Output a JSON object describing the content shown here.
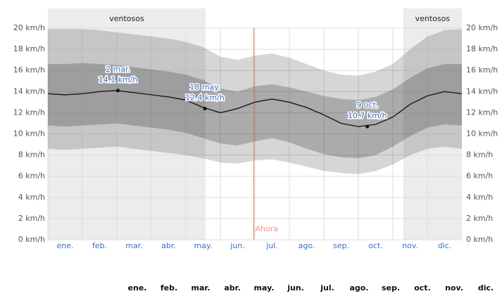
{
  "chart_data": {
    "type": "band-line",
    "categories": [
      "ene.",
      "feb.",
      "mar.",
      "abr.",
      "may.",
      "jun.",
      "jul.",
      "ago.",
      "sep.",
      "oct.",
      "nov.",
      "dic."
    ],
    "x": [
      0,
      0.5,
      1,
      1.5,
      2,
      2.5,
      3,
      3.5,
      4,
      4.5,
      5,
      5.5,
      6,
      6.5,
      7,
      7.5,
      8,
      8.5,
      9,
      9.5,
      10,
      10.5,
      11,
      11.5,
      12
    ],
    "xlim": [
      0,
      12
    ],
    "ylim": [
      0,
      20
    ],
    "yticks": [
      {
        "value": 0,
        "label": "0 km/h"
      },
      {
        "value": 2,
        "label": "2 km/h"
      },
      {
        "value": 4,
        "label": "4 km/h"
      },
      {
        "value": 6,
        "label": "6 km/h"
      },
      {
        "value": 8,
        "label": "8 km/h"
      },
      {
        "value": 10,
        "label": "10 km/h"
      },
      {
        "value": 12,
        "label": "12 km/h"
      },
      {
        "value": 14,
        "label": "14 km/h"
      },
      {
        "value": 16,
        "label": "16 km/h"
      },
      {
        "value": 18,
        "label": "18 km/h"
      },
      {
        "value": 20,
        "label": "20 km/h"
      }
    ],
    "grid": true,
    "values": [
      13.8,
      13.7,
      13.8,
      14.0,
      14.1,
      13.9,
      13.7,
      13.5,
      13.2,
      12.5,
      12.0,
      12.4,
      13.0,
      13.3,
      13.0,
      12.5,
      11.8,
      11.0,
      10.7,
      10.9,
      11.6,
      12.8,
      13.6,
      14.0,
      13.8
    ],
    "color": "#222222",
    "bands": [
      {
        "color": "rgba(0,0,0,0.16)",
        "high": [
          19.9,
          19.9,
          19.9,
          19.8,
          19.6,
          19.4,
          19.2,
          19.0,
          18.7,
          18.2,
          17.3,
          17.0,
          17.4,
          17.6,
          17.2,
          16.6,
          16.0,
          15.6,
          15.5,
          15.9,
          16.6,
          18.0,
          19.2,
          19.8,
          19.9
        ],
        "low": [
          8.6,
          8.5,
          8.6,
          8.7,
          8.8,
          8.6,
          8.4,
          8.2,
          8.0,
          7.7,
          7.3,
          7.2,
          7.5,
          7.6,
          7.3,
          6.9,
          6.5,
          6.3,
          6.2,
          6.5,
          7.1,
          8.0,
          8.6,
          8.8,
          8.6
        ]
      },
      {
        "color": "rgba(0,0,0,0.2)",
        "high": [
          16.6,
          16.6,
          16.7,
          16.6,
          16.5,
          16.3,
          16.1,
          15.9,
          15.6,
          15.1,
          14.3,
          14.0,
          14.5,
          14.7,
          14.4,
          14.0,
          13.6,
          13.3,
          13.2,
          13.5,
          14.2,
          15.3,
          16.2,
          16.6,
          16.6
        ],
        "low": [
          10.8,
          10.7,
          10.8,
          10.9,
          11.0,
          10.8,
          10.6,
          10.4,
          10.1,
          9.6,
          9.1,
          8.9,
          9.3,
          9.6,
          9.2,
          8.6,
          8.1,
          7.8,
          7.7,
          8.0,
          8.8,
          9.8,
          10.6,
          10.9,
          10.8
        ]
      }
    ],
    "highlights": [
      {
        "label": "ventosos",
        "start": 0,
        "end": 4.57
      },
      {
        "label": "ventosos",
        "start": 10.3,
        "end": 12
      }
    ],
    "now": {
      "label": "Ahora",
      "x": 5.97
    },
    "annotations": [
      {
        "date": "2 mar.",
        "x": 2.03,
        "y": 14.1,
        "label": "14.1 km/h"
      },
      {
        "date": "18 may.",
        "x": 4.55,
        "y": 12.4,
        "label": "12.4 km/h"
      },
      {
        "date": "9 oct.",
        "x": 9.26,
        "y": 10.7,
        "label": "10.7 km/h"
      }
    ]
  }
}
